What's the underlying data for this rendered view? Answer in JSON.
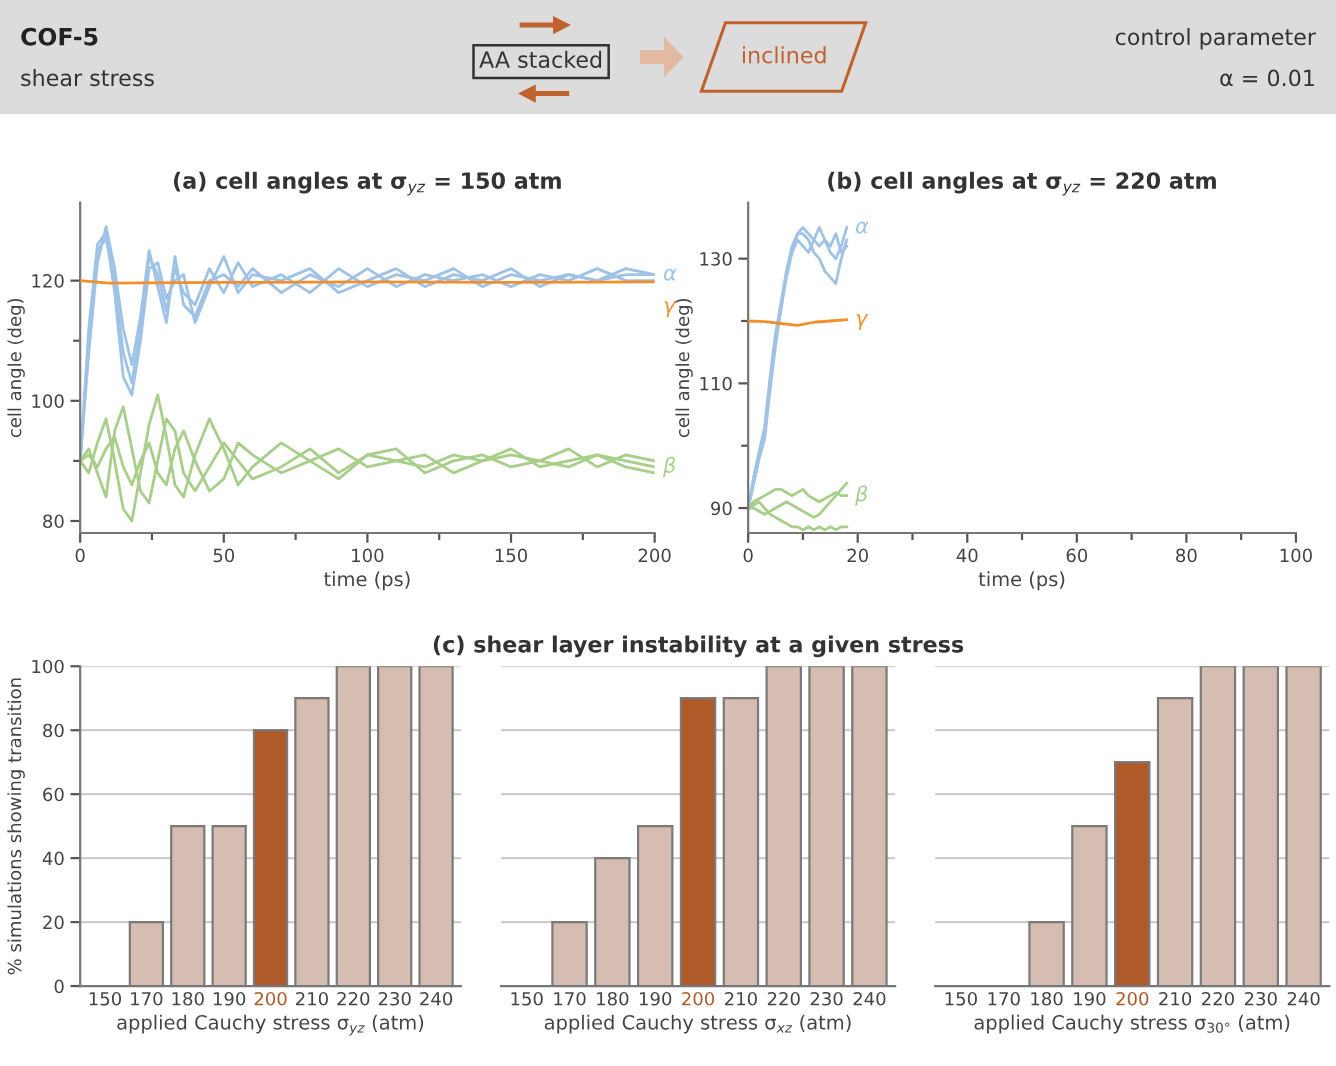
{
  "chart_data": [
    {
      "type": "other",
      "title": "COF-5",
      "subtitle": "shear stress",
      "annotations": [
        "AA stacked",
        "inclined",
        "control parameter",
        "α = 0.01"
      ]
    },
    {
      "type": "line",
      "title": "(a) cell angles at σ$_{yz}$ = 150 atm",
      "xlabel": "time (ps)",
      "ylabel": "cell angle (deg)",
      "x": [
        0,
        3,
        6,
        9,
        12,
        15,
        18,
        21,
        24,
        27,
        30,
        33,
        36,
        40,
        45,
        50,
        55,
        60,
        70,
        80,
        90,
        100,
        110,
        120,
        130,
        140,
        150,
        160,
        170,
        180,
        190,
        200
      ],
      "xlim": [
        0,
        200
      ],
      "ylim": [
        78,
        133
      ],
      "xticks": [
        0,
        {
          "value": 25,
          "label": null
        },
        50,
        {
          "value": 75,
          "label": null
        },
        100,
        {
          "value": 125,
          "label": null
        },
        150,
        {
          "value": 175,
          "label": null
        },
        200
      ],
      "yticks": [
        80,
        {
          "value": 90,
          "label": null
        },
        100,
        {
          "value": 110,
          "label": null
        },
        120
      ],
      "grid": false,
      "legend": false,
      "series": [
        {
          "name": "α",
          "color": "#9fc2e7",
          "values": [
            90,
            110,
            125,
            127,
            120,
            108,
            103,
            112,
            124,
            121,
            115,
            122,
            118,
            116,
            122,
            118,
            123,
            119,
            121,
            118,
            122,
            119,
            121,
            120,
            122,
            119,
            121,
            120,
            121,
            120,
            121,
            121
          ]
        },
        {
          "color": "#9fc2e7",
          "values": [
            90,
            108,
            123,
            129,
            122,
            112,
            106,
            114,
            125,
            119,
            113,
            124,
            116,
            114,
            120,
            121,
            119,
            122,
            118,
            121,
            119,
            122,
            119,
            121,
            120,
            121,
            119,
            121,
            120,
            122,
            120,
            120
          ]
        },
        {
          "color": "#9fc2e7",
          "values": [
            90,
            112,
            126,
            128,
            118,
            104,
            101,
            110,
            122,
            123,
            117,
            120,
            121,
            113,
            119,
            124,
            118,
            121,
            120,
            122,
            118,
            120,
            122,
            119,
            121,
            120,
            122,
            119,
            121,
            120,
            122,
            121
          ]
        },
        {
          "name": "γ",
          "color": "#f28e2b",
          "x": [
            0,
            10,
            50,
            100,
            150,
            200
          ],
          "values": [
            120,
            119.6,
            119.7,
            119.8,
            119.7,
            119.8
          ]
        },
        {
          "name": "β",
          "color": "#a8cf8a",
          "values": [
            90,
            92,
            88,
            84,
            95,
            99,
            92,
            85,
            83,
            90,
            97,
            95,
            88,
            85,
            89,
            93,
            90,
            87,
            89,
            92,
            88,
            91,
            90,
            89,
            91,
            90,
            92,
            89,
            90,
            91,
            90,
            89
          ]
        },
        {
          "color": "#a8cf8a",
          "values": [
            90,
            88,
            93,
            97,
            90,
            82,
            80,
            88,
            96,
            101,
            94,
            86,
            84,
            91,
            97,
            92,
            86,
            89,
            93,
            90,
            87,
            91,
            92,
            88,
            90,
            91,
            89,
            90,
            92,
            89,
            91,
            90
          ]
        },
        {
          "color": "#a8cf8a",
          "values": [
            90,
            91,
            89,
            92,
            94,
            89,
            86,
            90,
            93,
            88,
            86,
            92,
            95,
            90,
            85,
            87,
            93,
            91,
            88,
            90,
            92,
            89,
            90,
            91,
            88,
            90,
            91,
            90,
            89,
            91,
            89,
            88
          ]
        }
      ]
    },
    {
      "type": "line",
      "title": "(b) cell angles at σ$_{yz}$ = 220 atm",
      "xlabel": "time (ps)",
      "ylabel": "cell angle (deg)",
      "x": [
        0,
        1,
        2,
        3,
        4,
        5,
        6,
        7,
        8,
        9,
        10,
        11,
        12,
        13,
        14,
        15,
        16,
        17,
        18
      ],
      "xlim": [
        0,
        100
      ],
      "ylim": [
        86,
        139
      ],
      "xticks": [
        0,
        {
          "value": 10,
          "label": null
        },
        20,
        {
          "value": 30,
          "label": null
        },
        40,
        {
          "value": 50,
          "label": null
        },
        60,
        {
          "value": 70,
          "label": null
        },
        80,
        {
          "value": 90,
          "label": null
        },
        100
      ],
      "yticks": [
        90,
        {
          "value": 100,
          "label": null
        },
        110,
        {
          "value": 120,
          "label": null
        },
        130
      ],
      "grid": false,
      "legend": false,
      "series": [
        {
          "name": "α",
          "color": "#9fc2e7",
          "values": [
            90,
            94,
            98,
            102,
            110,
            117,
            122,
            127,
            131,
            134,
            135,
            134,
            133,
            132,
            133,
            131,
            130,
            132,
            135
          ]
        },
        {
          "color": "#9fc2e7",
          "values": [
            90,
            94,
            98,
            101,
            109,
            116,
            122,
            128,
            132,
            134,
            134,
            133,
            131,
            130,
            128,
            127,
            126,
            130,
            133
          ]
        },
        {
          "color": "#9fc2e7",
          "values": [
            90,
            95,
            99,
            103,
            111,
            118,
            123,
            128,
            131,
            133,
            132,
            131,
            133,
            135,
            133,
            132,
            134,
            131,
            132
          ]
        },
        {
          "name": "γ",
          "color": "#f28e2b",
          "x": [
            0,
            3,
            6,
            9,
            12,
            15,
            18
          ],
          "values": [
            120,
            119.9,
            119.6,
            119.3,
            119.8,
            120,
            120.2
          ]
        },
        {
          "name": "β",
          "color": "#a8cf8a",
          "values": [
            90,
            91,
            91.5,
            92,
            92.5,
            93,
            93,
            92.5,
            92,
            92.5,
            93,
            92,
            91.5,
            91,
            91.5,
            92,
            92.5,
            92,
            92
          ]
        },
        {
          "color": "#a8cf8a",
          "values": [
            90,
            90.5,
            91,
            90,
            89,
            88.5,
            88,
            87.5,
            87,
            87,
            86.5,
            87,
            86.5,
            87,
            86.5,
            87,
            86.5,
            87,
            87
          ]
        },
        {
          "color": "#a8cf8a",
          "values": [
            90,
            90,
            89.5,
            89,
            89.5,
            90,
            90.5,
            91,
            90.5,
            90,
            89.5,
            89,
            88.5,
            89,
            90,
            91,
            92,
            93,
            94
          ]
        }
      ]
    },
    {
      "type": "bar",
      "ylabel": "% simulations showing transition",
      "xlabel": "applied Cauchy stress σ$_{yz}$ (atm)",
      "categories": [
        "150",
        "170",
        "180",
        "190",
        "200",
        "210",
        "220",
        "230",
        "240"
      ],
      "values": [
        0,
        20,
        50,
        50,
        80,
        90,
        100,
        100,
        100
      ],
      "colors": [
        "#d5bdb1",
        "#d5bdb1",
        "#d5bdb1",
        "#d5bdb1",
        "#b05a2a",
        "#d5bdb1",
        "#d5bdb1",
        "#d5bdb1",
        "#d5bdb1"
      ],
      "ylim": [
        0,
        100
      ],
      "yticks": [
        0,
        20,
        40,
        60,
        80,
        100
      ],
      "grid": "y",
      "legend": false
    },
    {
      "type": "bar",
      "title": "(c) shear layer instability at a given stress",
      "xlabel": "applied Cauchy stress σ$_{xz}$ (atm)",
      "categories": [
        "150",
        "170",
        "180",
        "190",
        "200",
        "210",
        "220",
        "230",
        "240"
      ],
      "values": [
        0,
        20,
        40,
        50,
        90,
        90,
        100,
        100,
        100
      ],
      "colors": [
        "#d5bdb1",
        "#d5bdb1",
        "#d5bdb1",
        "#d5bdb1",
        "#b05a2a",
        "#d5bdb1",
        "#d5bdb1",
        "#d5bdb1",
        "#d5bdb1"
      ],
      "ylim": [
        0,
        100
      ],
      "yticks": [
        0,
        20,
        40,
        60,
        80,
        100
      ],
      "grid": "y",
      "legend": false,
      "tick_labels": "x"
    },
    {
      "type": "bar",
      "xlabel": "applied Cauchy stress σ$_{30°}$ (atm)",
      "categories": [
        "150",
        "170",
        "180",
        "190",
        "200",
        "210",
        "220",
        "230",
        "240"
      ],
      "values": [
        0,
        0,
        20,
        50,
        70,
        90,
        100,
        100,
        100
      ],
      "colors": [
        "#d5bdb1",
        "#d5bdb1",
        "#d5bdb1",
        "#d5bdb1",
        "#b05a2a",
        "#d5bdb1",
        "#d5bdb1",
        "#d5bdb1",
        "#d5bdb1"
      ],
      "ylim": [
        0,
        100
      ],
      "yticks": [
        0,
        20,
        40,
        60,
        80,
        100
      ],
      "grid": "y",
      "legend": false,
      "tick_labels": "x"
    }
  ]
}
